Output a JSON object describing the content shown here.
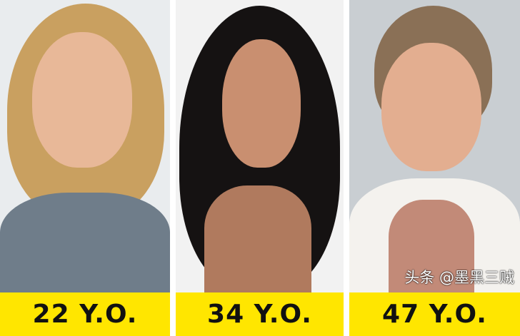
{
  "panels": [
    {
      "label": "22 Y.O.",
      "bg": "#e9ecee",
      "hair": "#c9a060",
      "skin": "#e8b898",
      "clothes": "#6f7d8a"
    },
    {
      "label": "34 Y.O.",
      "bg": "#f2f2f2",
      "hair": "#151212",
      "skin": "#c98f70",
      "clothes": "#1a1a1a"
    },
    {
      "label": "47 Y.O.",
      "bg": "#c9ced2",
      "hair": "#8a7056",
      "skin": "#e3ae90",
      "clothes": "#c28a78"
    }
  ],
  "band_color": "#ffe600",
  "watermark": "头条 @墨黑三贼"
}
